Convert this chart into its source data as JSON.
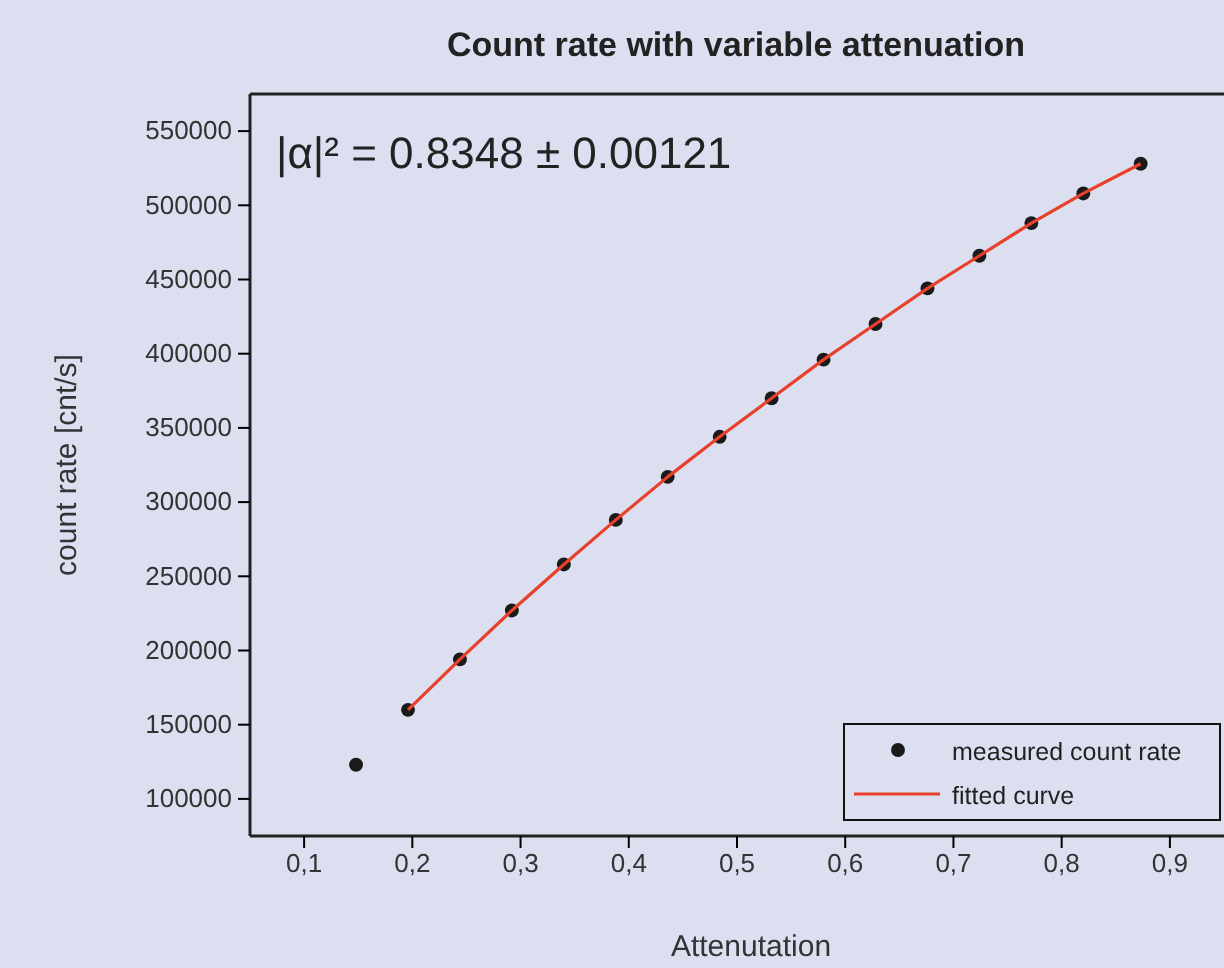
{
  "chart_data": {
    "type": "scatter",
    "title": "Count rate with variable attenuation",
    "xlabel": "Attenutation",
    "ylabel": "count rate [cnt/s]",
    "annotations": [
      "|α|² = 0.8348 ± 0.00121"
    ],
    "xlim": [
      0.05,
      0.95
    ],
    "xticks": [
      {
        "value": 0.1,
        "label": "0,1"
      },
      {
        "value": 0.2,
        "label": "0,2"
      },
      {
        "value": 0.3,
        "label": "0,3"
      },
      {
        "value": 0.4,
        "label": "0,4"
      },
      {
        "value": 0.5,
        "label": "0,5"
      },
      {
        "value": 0.6,
        "label": "0,6"
      },
      {
        "value": 0.7,
        "label": "0,7"
      },
      {
        "value": 0.8,
        "label": "0,8"
      },
      {
        "value": 0.9,
        "label": "0,9"
      }
    ],
    "ylim": [
      75000,
      575000
    ],
    "yticks": [
      100000,
      150000,
      200000,
      250000,
      300000,
      350000,
      400000,
      450000,
      500000,
      550000
    ],
    "legend": "bottom right",
    "grid": false,
    "series": [
      {
        "name": "measured count rate",
        "marker": "circle",
        "color": "#1a1a1a",
        "x": [
          0.148,
          0.196,
          0.244,
          0.292,
          0.34,
          0.388,
          0.436,
          0.484,
          0.532,
          0.58,
          0.628,
          0.676,
          0.724,
          0.772,
          0.82,
          0.873
        ],
        "values": [
          123000,
          160000,
          194000,
          227000,
          258000,
          288000,
          317000,
          344000,
          370000,
          396000,
          420000,
          444000,
          466000,
          488000,
          508000,
          528000
        ]
      },
      {
        "name": "fitted curve",
        "type": "line",
        "marker": "none",
        "line_style": "solid",
        "color": "#e8402a",
        "x": [
          0.196,
          0.244,
          0.292,
          0.34,
          0.388,
          0.436,
          0.484,
          0.532,
          0.58,
          0.628,
          0.676,
          0.724,
          0.772,
          0.82,
          0.873
        ],
        "values": [
          160000,
          194000,
          227000,
          258000,
          288000,
          317000,
          344000,
          370000,
          396000,
          420000,
          444000,
          466000,
          488000,
          508000,
          528000
        ]
      }
    ]
  }
}
